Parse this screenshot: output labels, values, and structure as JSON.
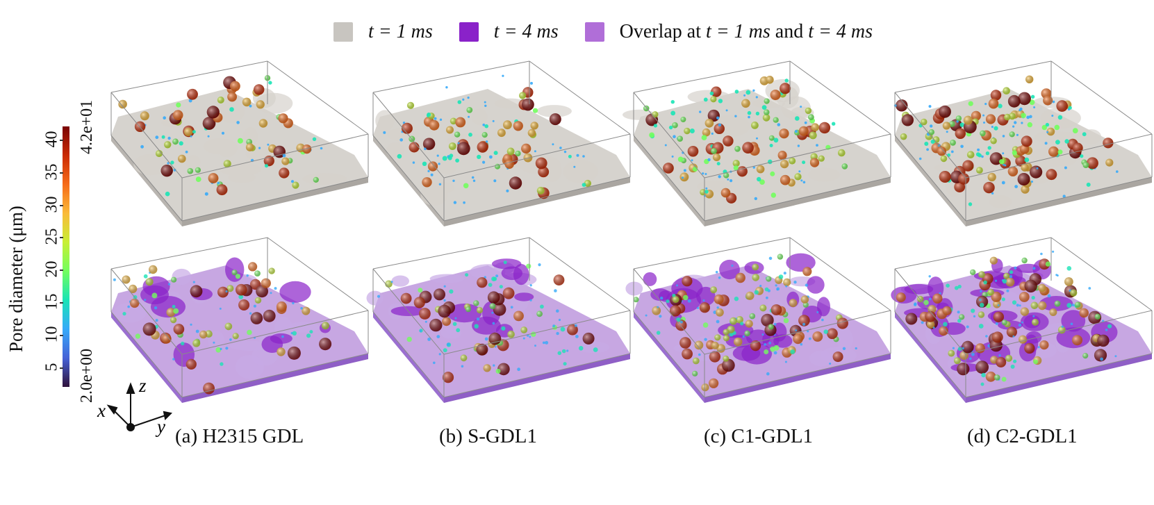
{
  "legend": {
    "items": [
      {
        "label_var": "t = 1 ms",
        "color": "#c8c5c0"
      },
      {
        "label_var": "t = 4 ms",
        "color": "#8a22c9"
      },
      {
        "label_prefix": "Overlap at ",
        "label_var1": "t = 1 ms",
        "label_mid": " and ",
        "label_var2": "t = 4 ms",
        "color": "#b06ed8"
      }
    ]
  },
  "colorbar": {
    "title": "Pore diameter (μm)",
    "ticks": [
      "5",
      "10",
      "15",
      "20",
      "25",
      "30",
      "35",
      "40"
    ],
    "min_label": "2.0e+00",
    "max_label": "4.2e+01",
    "min_value": 2.0,
    "max_value": 42.0,
    "colors": [
      "#30123b",
      "#4662d7",
      "#36aaf9",
      "#1ae4b6",
      "#72fe5e",
      "#c8ef34",
      "#faba39",
      "#f66b19",
      "#ca2a04",
      "#7a0403"
    ]
  },
  "axes_triad": {
    "x": "x",
    "y": "y",
    "z": "z"
  },
  "panels": [
    {
      "caption": "(a) H2315 GDL"
    },
    {
      "caption": "(b) S-GDL1"
    },
    {
      "caption": "(c) C1-GDL1"
    },
    {
      "caption": "(d) C2-GDL1"
    }
  ],
  "colors": {
    "box_line": "#8a8a8a",
    "material_gray": "#cfcbc5",
    "water_purple": "#8a22c9",
    "overlap_purple": "#b48ad8"
  }
}
